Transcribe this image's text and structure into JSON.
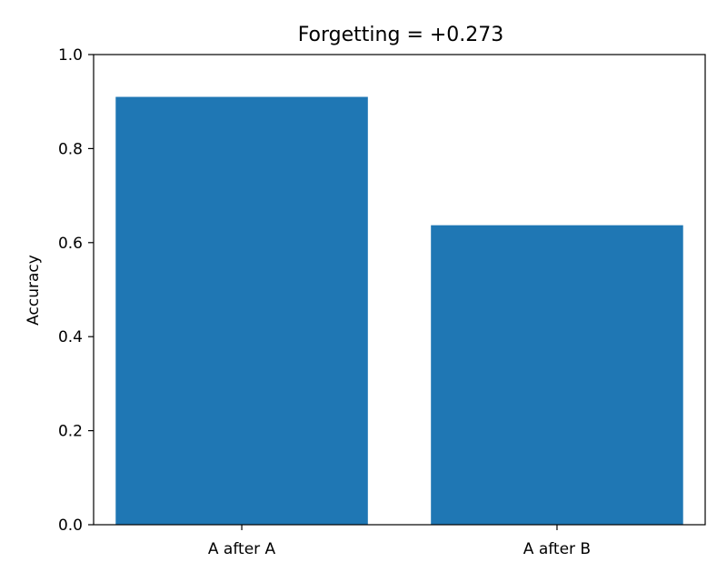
{
  "chart_data": {
    "type": "bar",
    "title": "Forgetting = +0.273",
    "xlabel": "",
    "ylabel": "Accuracy",
    "categories": [
      "A after A",
      "A after B"
    ],
    "values": [
      0.91,
      0.637
    ],
    "ylim": [
      0.0,
      1.0
    ],
    "yticks": [
      "0.0",
      "0.2",
      "0.4",
      "0.6",
      "0.8",
      "1.0"
    ],
    "grid": false,
    "bar_color": "#1f77b4"
  }
}
